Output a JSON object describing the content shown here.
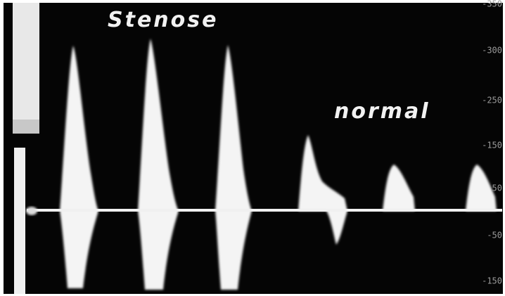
{
  "labels": {
    "stenose": "Stenose",
    "normal": "normal"
  },
  "scale": [
    "-350",
    "-300",
    "-250",
    "-150",
    "50",
    "-50",
    "-150"
  ]
}
